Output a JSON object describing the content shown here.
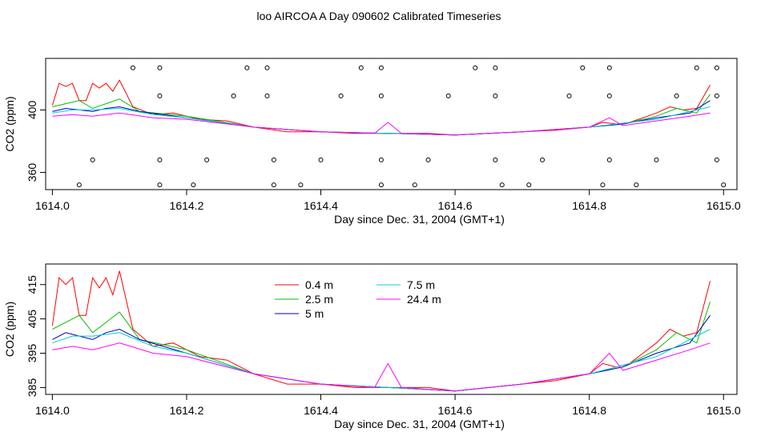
{
  "title": "loo AIRCOA A  Day 090602  Calibrated Timeseries",
  "chart_data": [
    {
      "type": "scatter",
      "name": "top",
      "xlabel": "Day since Dec. 31, 2004 (GMT+1)",
      "ylabel": "CO2 (ppm)",
      "xlim": [
        1613.99,
        1615.02
      ],
      "ylim": [
        349,
        433
      ],
      "xticks": [
        1614.0,
        1614.2,
        1614.4,
        1614.6,
        1614.8,
        1615.0
      ],
      "xtick_labels": [
        "1614.0",
        "1614.2",
        "1614.4",
        "1614.6",
        "1614.8",
        "1615.0"
      ],
      "yticks": [
        360,
        400
      ],
      "ytick_labels": [
        "360",
        "400"
      ],
      "series": [
        {
          "name": "0.4 m",
          "color": "#ff0000",
          "x": [
            1614.0,
            1614.01,
            1614.02,
            1614.03,
            1614.04,
            1614.05,
            1614.06,
            1614.07,
            1614.08,
            1614.09,
            1614.1,
            1614.12,
            1614.15,
            1614.18,
            1614.22,
            1614.26,
            1614.3,
            1614.35,
            1614.4,
            1614.45,
            1614.48,
            1614.5,
            1614.52,
            1614.56,
            1614.6,
            1614.65,
            1614.7,
            1614.75,
            1614.8,
            1614.82,
            1614.84,
            1614.86,
            1614.88,
            1614.9,
            1614.92,
            1614.94,
            1614.96,
            1614.98
          ],
          "y": [
            403,
            417,
            415,
            417,
            406,
            406,
            417,
            414,
            417,
            412,
            419,
            402,
            397,
            398,
            394,
            393,
            389,
            386,
            386,
            385,
            385,
            385,
            385,
            385,
            384,
            385,
            386,
            387,
            389,
            392,
            391,
            392,
            395,
            398,
            402,
            400,
            401,
            416
          ]
        },
        {
          "name": "2.5 m",
          "color": "#00c000",
          "x": [
            1614.0,
            1614.02,
            1614.04,
            1614.06,
            1614.08,
            1614.1,
            1614.13,
            1614.2,
            1614.3,
            1614.4,
            1614.5,
            1614.6,
            1614.7,
            1614.8,
            1614.85,
            1614.9,
            1614.93,
            1614.96,
            1614.98
          ],
          "y": [
            402,
            404,
            406,
            401,
            404,
            407,
            399,
            396,
            389,
            386,
            385,
            384,
            386,
            389,
            391,
            396,
            401,
            398,
            410
          ]
        },
        {
          "name": "5 m",
          "color": "#0000c0",
          "x": [
            1614.0,
            1614.02,
            1614.04,
            1614.06,
            1614.08,
            1614.1,
            1614.13,
            1614.2,
            1614.3,
            1614.4,
            1614.5,
            1614.6,
            1614.7,
            1614.8,
            1614.85,
            1614.9,
            1614.95,
            1614.98
          ],
          "y": [
            399,
            401,
            400,
            399,
            401,
            402,
            399,
            395,
            389,
            386,
            385,
            384,
            386,
            389,
            391,
            395,
            398,
            406
          ]
        },
        {
          "name": "7.5 m",
          "color": "#00d0d0",
          "x": [
            1614.0,
            1614.03,
            1614.06,
            1614.1,
            1614.15,
            1614.2,
            1614.3,
            1614.4,
            1614.5,
            1614.6,
            1614.7,
            1614.8,
            1614.9,
            1614.98
          ],
          "y": [
            398,
            400,
            400,
            401,
            397,
            395,
            389,
            386,
            385,
            384,
            386,
            389,
            394,
            402
          ]
        },
        {
          "name": "24.4 m",
          "color": "#ff00ff",
          "x": [
            1614.0,
            1614.03,
            1614.06,
            1614.1,
            1614.15,
            1614.2,
            1614.3,
            1614.4,
            1614.48,
            1614.5,
            1614.52,
            1614.6,
            1614.7,
            1614.8,
            1614.83,
            1614.85,
            1614.9,
            1614.95,
            1614.98
          ],
          "y": [
            396,
            397,
            396,
            398,
            395,
            394,
            389,
            386,
            385,
            392,
            385,
            384,
            386,
            389,
            395,
            390,
            393,
            396,
            398
          ]
        }
      ],
      "markers": {
        "shape": "circle",
        "rows": [
          {
            "y": 427,
            "x": [
              1614.12,
              1614.16,
              1614.29,
              1614.32,
              1614.46,
              1614.49,
              1614.63,
              1614.66,
              1614.79,
              1614.83,
              1614.96,
              1614.99
            ]
          },
          {
            "y": 409,
            "x": [
              1614.16,
              1614.27,
              1614.32,
              1614.43,
              1614.49,
              1614.59,
              1614.66,
              1614.77,
              1614.83,
              1614.93,
              1614.99
            ]
          },
          {
            "y": 368,
            "x": [
              1614.06,
              1614.16,
              1614.23,
              1614.33,
              1614.4,
              1614.49,
              1614.56,
              1614.66,
              1614.73,
              1614.83,
              1614.9,
              1614.99
            ]
          },
          {
            "y": 352,
            "x": [
              1614.04,
              1614.16,
              1614.21,
              1614.33,
              1614.37,
              1614.49,
              1614.54,
              1614.67,
              1614.71,
              1614.82,
              1614.87,
              1615.0
            ]
          }
        ]
      }
    },
    {
      "type": "line",
      "name": "bottom",
      "xlabel": "Day since Dec. 31, 2004 (GMT+1)",
      "ylabel": "CO2 (ppm)",
      "xlim": [
        1613.99,
        1615.02
      ],
      "ylim": [
        383,
        421
      ],
      "xticks": [
        1614.0,
        1614.2,
        1614.4,
        1614.6,
        1614.8,
        1615.0
      ],
      "xtick_labels": [
        "1614.0",
        "1614.2",
        "1614.4",
        "1614.6",
        "1614.8",
        "1615.0"
      ],
      "yticks": [
        385,
        395,
        405,
        415
      ],
      "ytick_labels": [
        "385",
        "395",
        "405",
        "415"
      ],
      "legend": {
        "placement": "top-left",
        "entries": [
          {
            "label": "0.4 m",
            "color": "#ff0000"
          },
          {
            "label": "2.5 m",
            "color": "#00c000"
          },
          {
            "label": "5 m",
            "color": "#0000c0"
          },
          {
            "label": "7.5 m",
            "color": "#00d0d0"
          },
          {
            "label": "24.4 m",
            "color": "#ff00ff"
          }
        ]
      },
      "series": [
        {
          "name": "0.4 m",
          "color": "#ff0000",
          "x": [
            1614.0,
            1614.01,
            1614.02,
            1614.03,
            1614.04,
            1614.05,
            1614.06,
            1614.07,
            1614.08,
            1614.09,
            1614.1,
            1614.12,
            1614.15,
            1614.18,
            1614.22,
            1614.26,
            1614.3,
            1614.35,
            1614.4,
            1614.45,
            1614.48,
            1614.5,
            1614.52,
            1614.56,
            1614.6,
            1614.65,
            1614.7,
            1614.75,
            1614.8,
            1614.82,
            1614.84,
            1614.86,
            1614.88,
            1614.9,
            1614.92,
            1614.94,
            1614.96,
            1614.98
          ],
          "y": [
            403,
            417,
            415,
            417,
            406,
            406,
            417,
            414,
            417,
            412,
            419,
            402,
            397,
            398,
            394,
            393,
            389,
            386,
            386,
            385,
            385,
            385,
            385,
            385,
            384,
            385,
            386,
            387,
            389,
            392,
            391,
            392,
            395,
            398,
            402,
            400,
            401,
            416
          ]
        },
        {
          "name": "2.5 m",
          "color": "#00c000",
          "x": [
            1614.0,
            1614.02,
            1614.04,
            1614.06,
            1614.08,
            1614.1,
            1614.13,
            1614.2,
            1614.3,
            1614.4,
            1614.5,
            1614.6,
            1614.7,
            1614.8,
            1614.85,
            1614.9,
            1614.93,
            1614.96,
            1614.98
          ],
          "y": [
            402,
            404,
            406,
            401,
            404,
            407,
            399,
            396,
            389,
            386,
            385,
            384,
            386,
            389,
            391,
            396,
            401,
            398,
            410
          ]
        },
        {
          "name": "5 m",
          "color": "#0000c0",
          "x": [
            1614.0,
            1614.02,
            1614.04,
            1614.06,
            1614.08,
            1614.1,
            1614.13,
            1614.2,
            1614.3,
            1614.4,
            1614.5,
            1614.6,
            1614.7,
            1614.8,
            1614.85,
            1614.9,
            1614.95,
            1614.98
          ],
          "y": [
            399,
            401,
            400,
            399,
            401,
            402,
            399,
            395,
            389,
            386,
            385,
            384,
            386,
            389,
            391,
            395,
            398,
            406
          ]
        },
        {
          "name": "7.5 m",
          "color": "#00d0d0",
          "x": [
            1614.0,
            1614.03,
            1614.06,
            1614.1,
            1614.15,
            1614.2,
            1614.3,
            1614.4,
            1614.5,
            1614.6,
            1614.7,
            1614.8,
            1614.9,
            1614.98
          ],
          "y": [
            398,
            400,
            400,
            401,
            397,
            395,
            389,
            386,
            385,
            384,
            386,
            389,
            394,
            402
          ]
        },
        {
          "name": "24.4 m",
          "color": "#ff00ff",
          "x": [
            1614.0,
            1614.03,
            1614.06,
            1614.1,
            1614.15,
            1614.2,
            1614.3,
            1614.4,
            1614.48,
            1614.5,
            1614.52,
            1614.6,
            1614.7,
            1614.8,
            1614.83,
            1614.85,
            1614.9,
            1614.95,
            1614.98
          ],
          "y": [
            396,
            397,
            396,
            398,
            395,
            394,
            389,
            386,
            385,
            392,
            385,
            384,
            386,
            389,
            395,
            390,
            393,
            396,
            398
          ]
        }
      ]
    }
  ]
}
